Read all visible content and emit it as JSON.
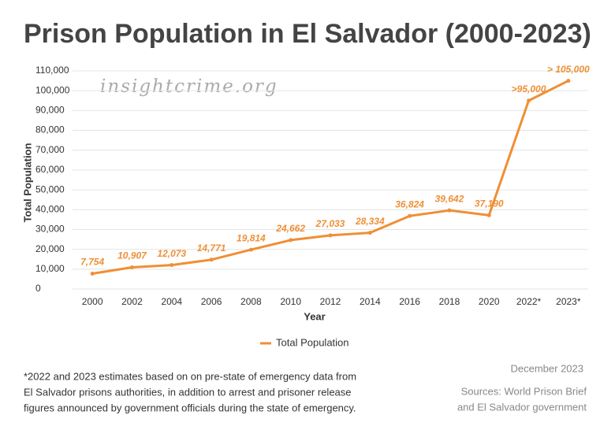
{
  "chart_data": {
    "type": "line",
    "title": "Prison Population in El Salvador (2000-2023)",
    "watermark": "insightcrime.org",
    "x_label": "Year",
    "y_label": "Total Population",
    "categories": [
      "2000",
      "2002",
      "2004",
      "2006",
      "2008",
      "2010",
      "2012",
      "2014",
      "2016",
      "2018",
      "2020",
      "2022*",
      "2023*"
    ],
    "series": [
      {
        "name": "Total Population",
        "color": "#ef8f35",
        "values": [
          7754,
          10907,
          12073,
          14771,
          19814,
          24662,
          27033,
          28334,
          36824,
          39642,
          37190,
          95000,
          105000
        ],
        "value_labels": [
          "7,754",
          "10,907",
          "12,073",
          "14,771",
          "19,814",
          "24,662",
          "27,033",
          "28,334",
          "36,824",
          "39,642",
          "37,190",
          ">95,000",
          "> 105,000"
        ]
      }
    ],
    "ylim": [
      0,
      110000
    ],
    "yticks": [
      0,
      {
        "value": 10000,
        "label": "10,000"
      },
      {
        "value": 20000,
        "label": "20,000"
      },
      {
        "value": 30000,
        "label": "30,000"
      },
      {
        "value": 40000,
        "label": "40,000"
      },
      {
        "value": 50000,
        "label": "50,000"
      },
      {
        "value": 60000,
        "label": "60,000"
      },
      {
        "value": 70000,
        "label": "70,000"
      },
      {
        "value": 80000,
        "label": "80,000"
      },
      {
        "value": 90000,
        "label": "90,000"
      },
      {
        "value": 100000,
        "label": "100,000"
      },
      {
        "value": 110000,
        "label": "110,000"
      }
    ],
    "grid": true,
    "legend": "bottom"
  },
  "footnote": [
    "*2022 and 2023 estimates based on on pre-state of emergency data from",
    "El Salvador prisons authorities, in addition to arrest and prisoner release",
    "figures announced by government officials during the state of emergency."
  ],
  "date": "December 2023",
  "sources": [
    "Sources: World Prison Brief",
    "and El Salvador government"
  ]
}
